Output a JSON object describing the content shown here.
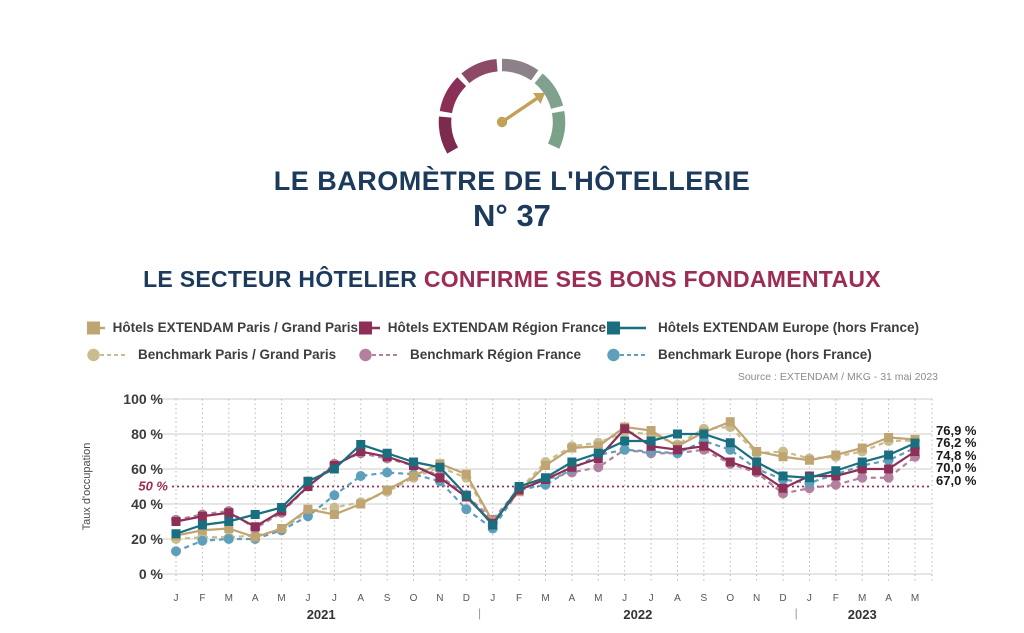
{
  "header": {
    "title": "LE BAROMÈTRE DE L'HÔTELLERIE",
    "issue": "N° 37",
    "subtitle_dark": "LE SECTEUR HÔTELIER",
    "subtitle_accent": "CONFIRME SES BONS FONDAMENTAUX"
  },
  "gauge": {
    "segment_colors": [
      "#7E2A4E",
      "#8A2F55",
      "#8D4A66",
      "#8C8189",
      "#7FA18E",
      "#7BA189"
    ],
    "needle_color": "#C3A159"
  },
  "legend": {
    "rows": [
      {
        "items": [
          {
            "label": "Hôtels EXTENDAM Paris / Grand Paris",
            "color": "#BFA571",
            "style": "solid"
          },
          {
            "label": "Hôtels EXTENDAM Région France",
            "color": "#8E2F57",
            "style": "solid"
          },
          {
            "label": "Hôtels EXTENDAM Europe (hors France)",
            "color": "#196E80",
            "style": "solid"
          }
        ]
      },
      {
        "items": [
          {
            "label": "Benchmark Paris / Grand Paris",
            "color": "#C9BC8F",
            "style": "dashed"
          },
          {
            "label": "Benchmark Région France",
            "color": "#B3809F",
            "style": "dashed"
          },
          {
            "label": "Benchmark Europe (hors France)",
            "color": "#5F9FBA",
            "style": "dashed"
          }
        ]
      }
    ]
  },
  "source": "Source : EXTENDAM / MKG - 31 mai 2023",
  "chart_data": {
    "type": "line",
    "ylabel": "Taux d'occupation",
    "ylim": [
      0,
      100
    ],
    "y_ticks": [
      {
        "value": 0,
        "label": "0 %"
      },
      {
        "value": 20,
        "label": "20 %"
      },
      {
        "value": 40,
        "label": "40 %"
      },
      {
        "value": 60,
        "label": "60 %"
      },
      {
        "value": 80,
        "label": "80 %"
      },
      {
        "value": 100,
        "label": "100 %"
      }
    ],
    "reference_line": {
      "value": 50,
      "label": "50 %",
      "color": "#9C2C56"
    },
    "months": [
      "J",
      "F",
      "M",
      "A",
      "M",
      "J",
      "J",
      "A",
      "S",
      "O",
      "N",
      "D",
      "J",
      "F",
      "M",
      "A",
      "M",
      "J",
      "J",
      "A",
      "S",
      "O",
      "N",
      "D",
      "J",
      "F",
      "M",
      "A",
      "M"
    ],
    "year_spans": [
      {
        "label": "2021",
        "from": 0,
        "to": 11
      },
      {
        "label": "2022",
        "from": 12,
        "to": 23
      },
      {
        "label": "2023",
        "from": 24,
        "to": 28
      }
    ],
    "series": [
      {
        "name": "Hôtels EXTENDAM Paris / Grand Paris",
        "color": "#BFA571",
        "line": "solid",
        "marker": "square",
        "values": [
          22,
          25,
          26,
          21,
          26,
          37,
          34,
          40,
          48,
          56,
          63,
          57,
          30,
          47,
          62,
          72,
          73,
          84,
          82,
          73,
          81,
          87,
          70,
          67,
          65,
          68,
          72,
          78,
          76.9
        ]
      },
      {
        "name": "Benchmark Paris / Grand Paris",
        "color": "#C9BC8F",
        "line": "dashed",
        "marker": "circle",
        "values": [
          20,
          21,
          21,
          22,
          25,
          36,
          38,
          41,
          47,
          55,
          61,
          55,
          29,
          48,
          64,
          73,
          75,
          81,
          80,
          74,
          83,
          84,
          69,
          70,
          66,
          67,
          70,
          76,
          76.2
        ]
      },
      {
        "name": "Hôtels EXTENDAM Région France",
        "color": "#8E2F57",
        "line": "solid",
        "marker": "square",
        "values": [
          30,
          33,
          35,
          27,
          36,
          50,
          62,
          70,
          67,
          62,
          55,
          44,
          29,
          48,
          54,
          61,
          66,
          83,
          73,
          71,
          73,
          64,
          59,
          49,
          56,
          56,
          60,
          60,
          70
        ]
      },
      {
        "name": "Benchmark Région France",
        "color": "#B3809F",
        "line": "dashed",
        "marker": "circle",
        "values": [
          31,
          34,
          36,
          26,
          35,
          50,
          63,
          69,
          66,
          62,
          56,
          45,
          31,
          49,
          54,
          58,
          61,
          71,
          69,
          69,
          71,
          63,
          58,
          46,
          49,
          51,
          55,
          55,
          67
        ]
      },
      {
        "name": "Hôtels EXTENDAM Europe (hors France)",
        "color": "#196E80",
        "line": "solid",
        "marker": "square",
        "values": [
          23,
          28,
          30,
          34,
          38,
          53,
          60,
          74,
          69,
          64,
          61,
          45,
          28,
          50,
          55,
          64,
          69,
          76,
          76,
          80,
          80,
          75,
          64,
          56,
          55,
          59,
          64,
          68,
          74.8
        ]
      },
      {
        "name": "Benchmark Europe (hors France)",
        "color": "#5F9FBA",
        "line": "dashed",
        "marker": "circle",
        "values": [
          13,
          19,
          20,
          20,
          25,
          33,
          45,
          56,
          58,
          57,
          53,
          37,
          26,
          48,
          51,
          60,
          68,
          71,
          70,
          69,
          76,
          71,
          60,
          54,
          52,
          57,
          62,
          65,
          72
        ]
      }
    ],
    "end_labels": [
      {
        "text": "76,9 %",
        "series": "Hôtels EXTENDAM Paris / Grand Paris"
      },
      {
        "text": "76,2 %",
        "series": "Benchmark Paris / Grand Paris"
      },
      {
        "text": "74,8 %",
        "series": "Hôtels EXTENDAM Europe (hors France)"
      },
      {
        "text": "70,0 %",
        "series": "Hôtels EXTENDAM Région France"
      },
      {
        "text": "67,0 %",
        "series": "Benchmark Région France"
      }
    ]
  }
}
